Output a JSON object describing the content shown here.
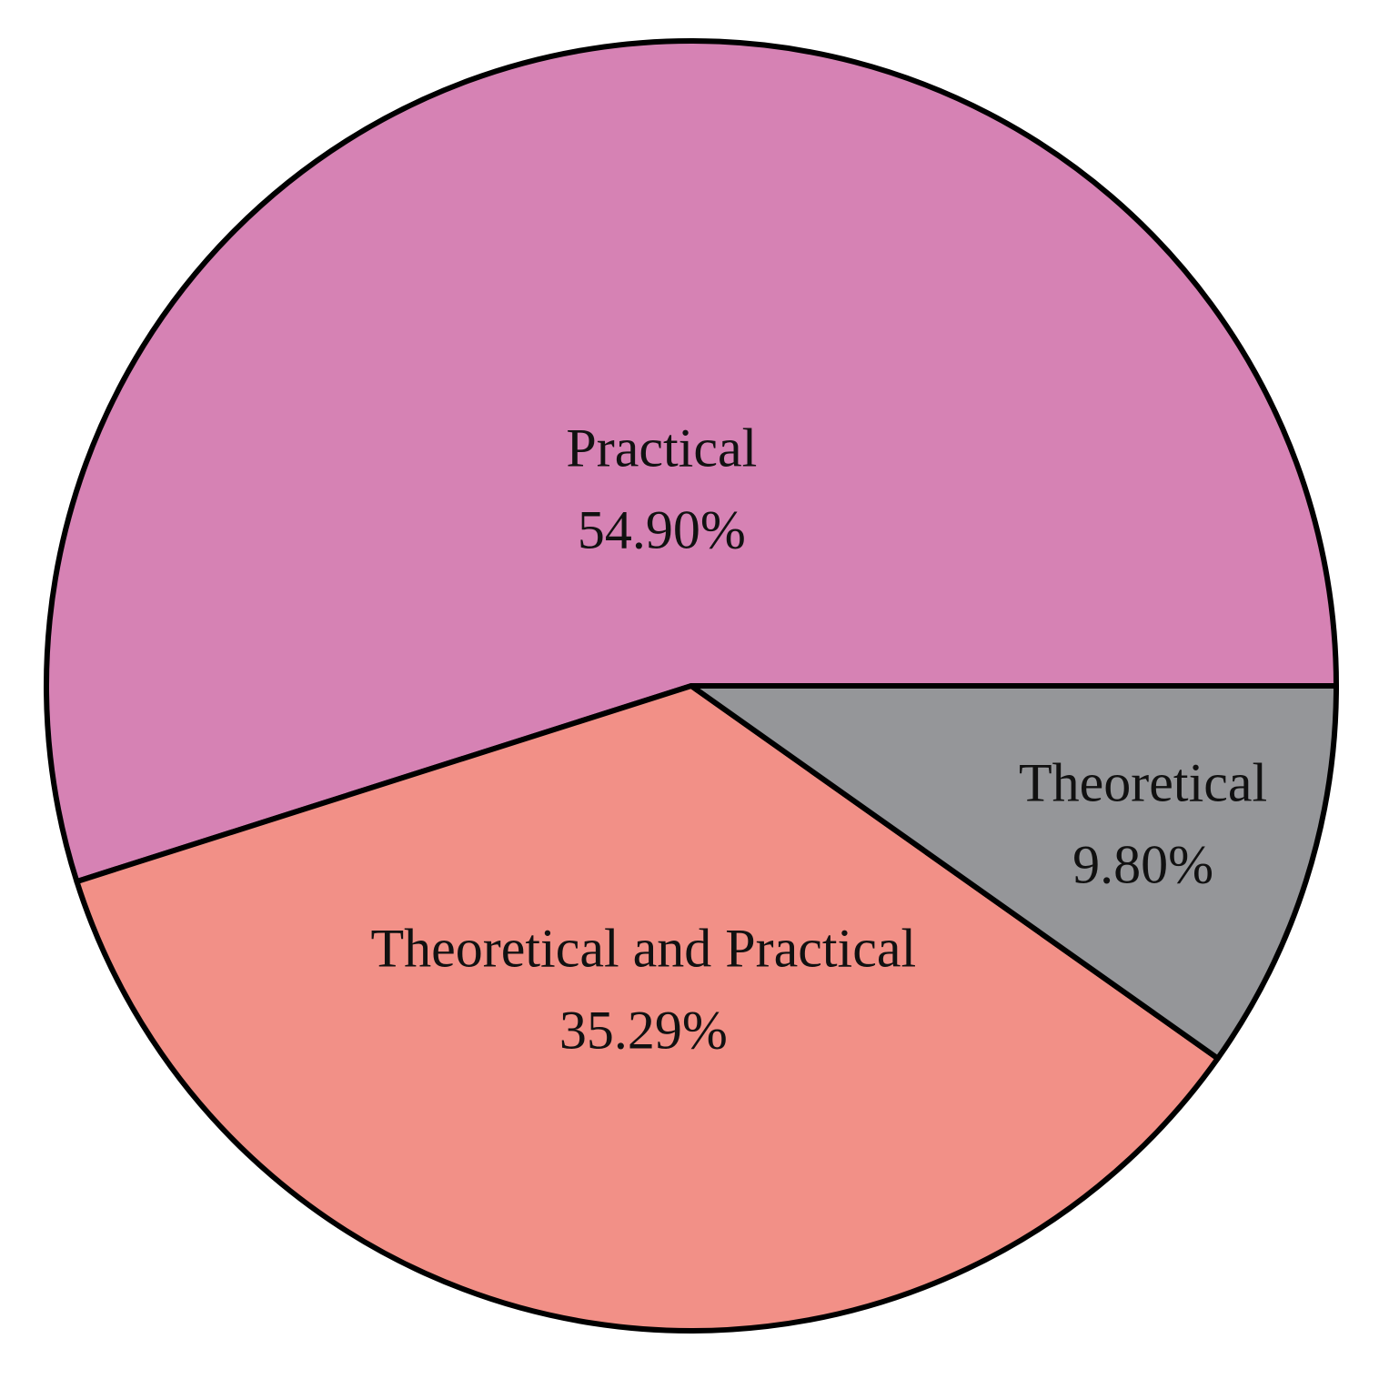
{
  "chart_data": {
    "type": "pie",
    "categories": [
      "Practical",
      "Theoretical and Practical",
      "Theoretical"
    ],
    "values": [
      54.9,
      35.29,
      9.8
    ],
    "value_labels": [
      "54.90%",
      "35.29%",
      "9.80%"
    ],
    "colors": [
      "#d682b4",
      "#f29087",
      "#959699"
    ],
    "start_angle": 0,
    "direction": "counterclockwise"
  }
}
